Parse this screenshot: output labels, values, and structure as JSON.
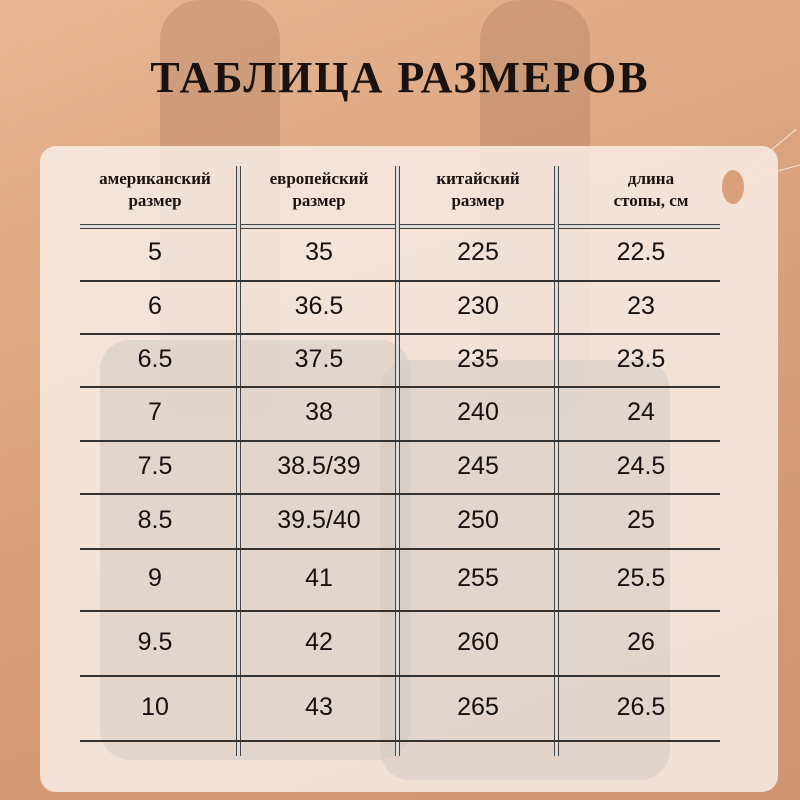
{
  "title": "ТАБЛИЦА РАЗМЕРОВ",
  "colors": {
    "background": "#d9a27c",
    "panel": "#f8eee6",
    "text": "#1a1210"
  },
  "table": {
    "headers": [
      [
        "американский",
        "размер"
      ],
      [
        "европейский",
        "размер"
      ],
      [
        "китайский",
        "размер"
      ],
      [
        "длина",
        "стопы, см"
      ]
    ],
    "rows": [
      [
        "5",
        "35",
        "225",
        "22.5"
      ],
      [
        "6",
        "36.5",
        "230",
        "23"
      ],
      [
        "6.5",
        "37.5",
        "235",
        "23.5"
      ],
      [
        "7",
        "38",
        "240",
        "24"
      ],
      [
        "7.5",
        "38.5/39",
        "245",
        "24.5"
      ],
      [
        "8.5",
        "39.5/40",
        "250",
        "25"
      ],
      [
        "9",
        "41",
        "255",
        "25.5"
      ],
      [
        "9.5",
        "42",
        "260",
        "26"
      ],
      [
        "10",
        "43",
        "265",
        "26.5"
      ]
    ]
  }
}
